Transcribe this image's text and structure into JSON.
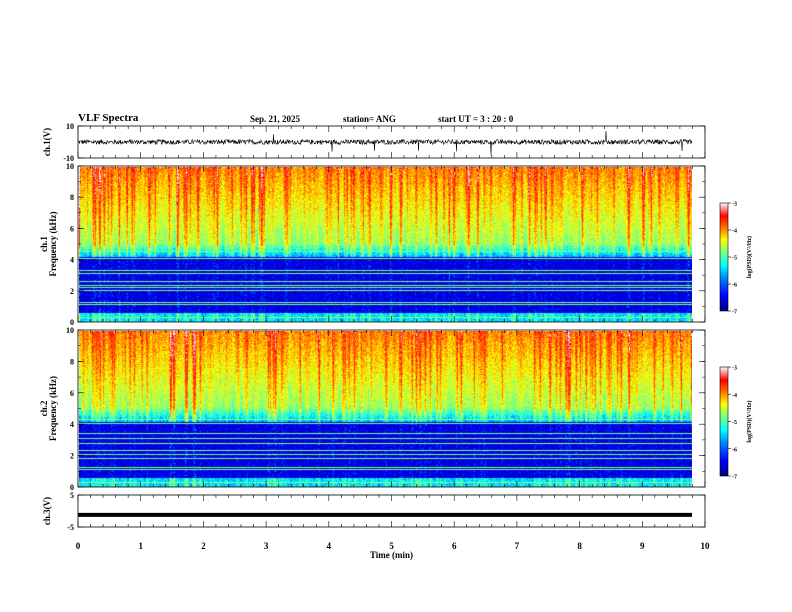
{
  "header": {
    "title": "VLF Spectra",
    "date": "Sep. 21, 2025",
    "station": "station= ANG",
    "start": "start  UT =  3 : 20 : 0"
  },
  "colors": {
    "spectrogram_scale": [
      "#00007f",
      "#0000ff",
      "#007fff",
      "#00ffff",
      "#7fff7f",
      "#ffff00",
      "#ff7f00",
      "#ff0000",
      "#ffffff"
    ],
    "trace": "#000000"
  },
  "chart_data": [
    {
      "type": "line",
      "name": "ch1-waveform",
      "ylabel": "ch.1(V)",
      "ylim": [
        -10,
        10
      ],
      "yticks": [
        "10",
        "-10"
      ],
      "xlim": [
        0,
        10
      ],
      "baseline": 0,
      "noise_amplitude": 1.5
    },
    {
      "type": "heatmap",
      "name": "ch1-spectrogram",
      "ylabel": "Frequency  (kHz)",
      "ylabel2": "ch.1",
      "ylim": [
        0,
        10
      ],
      "yticks": [
        "0",
        "2",
        "4",
        "6",
        "8",
        "10"
      ],
      "xlim": [
        0,
        9.83
      ],
      "colorbar": {
        "label": "log(PSD)(V²/Hz)",
        "range": [
          -7,
          -3
        ],
        "ticks": [
          "-3",
          "-4",
          "-5",
          "-6",
          "-7"
        ]
      },
      "lines_khz": [
        0.35,
        1.15,
        1.3,
        2.05,
        2.25,
        2.4,
        2.65,
        3.15,
        3.35,
        4.1,
        4.55
      ]
    },
    {
      "type": "heatmap",
      "name": "ch2-spectrogram",
      "ylabel": "Frequency  (kHz)",
      "ylabel2": "ch.2",
      "ylim": [
        0,
        10
      ],
      "yticks": [
        "0",
        "2",
        "4",
        "6",
        "8",
        "10"
      ],
      "xlim": [
        0,
        9.83
      ],
      "colorbar": {
        "label": "log(PSD)(V²/Hz)",
        "range": [
          -7,
          -3
        ],
        "ticks": [
          "-3",
          "-4",
          "-5",
          "-6",
          "-7"
        ]
      },
      "lines_khz": [
        0.35,
        1.15,
        1.3,
        1.85,
        2.1,
        2.4,
        2.85,
        3.15,
        3.45,
        4.1,
        4.35
      ]
    },
    {
      "type": "line",
      "name": "ch3-waveform",
      "ylabel": "ch.3(V)",
      "ylim": [
        -5,
        5
      ],
      "yticks": [
        "5",
        "-5"
      ],
      "xlim": [
        0,
        10
      ],
      "baseline": -1.2,
      "noise_amplitude": 0.0
    }
  ],
  "xaxis": {
    "label": "Time  (min)",
    "range": [
      0,
      10
    ],
    "ticks": [
      "0",
      "1",
      "2",
      "3",
      "4",
      "5",
      "6",
      "7",
      "8",
      "9",
      "10"
    ]
  }
}
